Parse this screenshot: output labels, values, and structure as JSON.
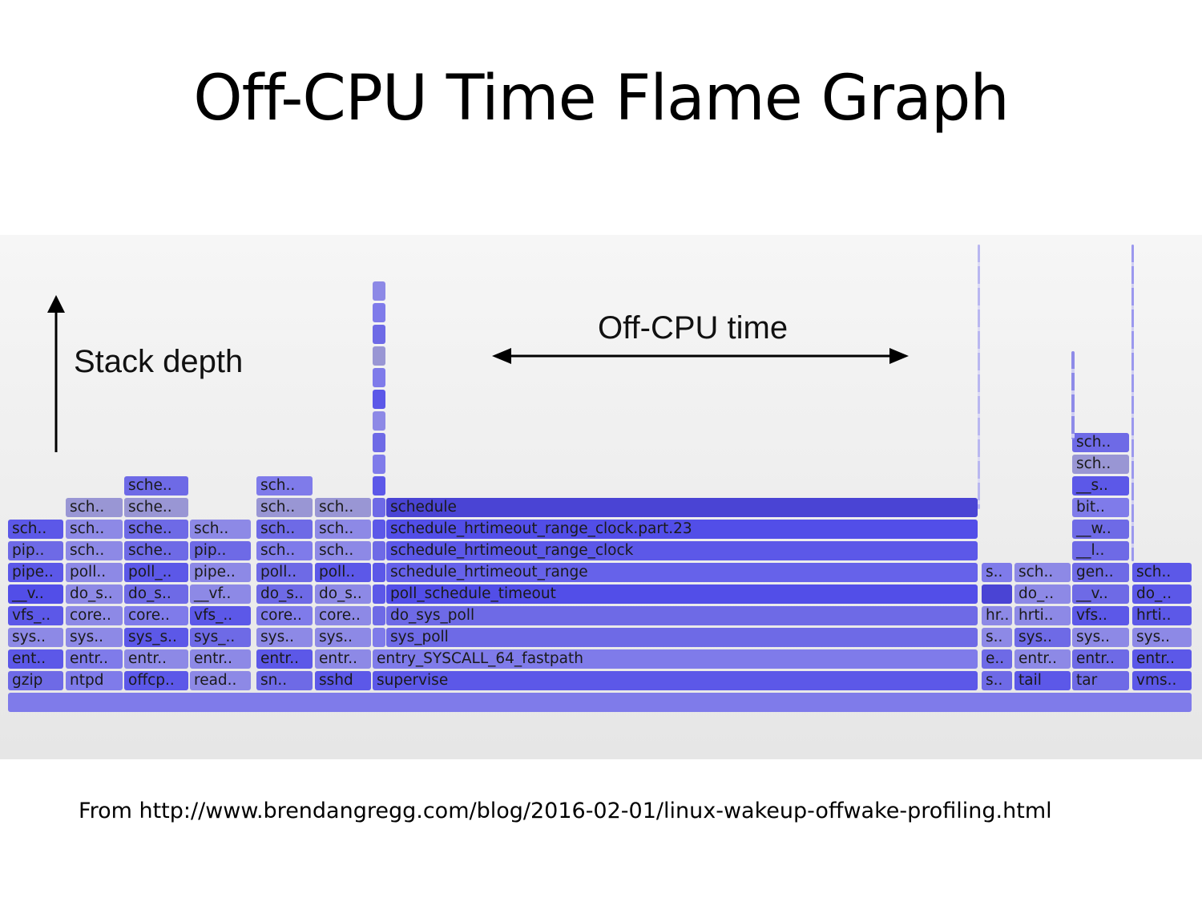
{
  "slide": {
    "title": "Off-CPU Time Flame Graph",
    "source": "From http://www.brendangregg.com/blog/2016-02-01/linux-wakeup-offwake-profiling.html"
  },
  "annotations": {
    "stack_depth": "Stack depth",
    "off_cpu_time": "Off-CPU time"
  },
  "colors": {
    "shades": [
      "#5c58e8",
      "#6e6ae6",
      "#7f7bea",
      "#8d89e6",
      "#9996d4",
      "#4a44d4",
      "#524ee8",
      "#6662ea"
    ]
  },
  "flame_graph": {
    "frames": [
      {
        "label": "",
        "shade": 2
      },
      {
        "label": "gzip",
        "shade": 1
      },
      {
        "label": "ntpd",
        "shade": 2
      },
      {
        "label": "offcp..",
        "shade": 0
      },
      {
        "label": "read..",
        "shade": 3
      },
      {
        "label": "sn..",
        "shade": 1
      },
      {
        "label": "sshd",
        "shade": 0
      },
      {
        "label": "supervise",
        "shade": 0
      },
      {
        "label": "s..",
        "shade": 1
      },
      {
        "label": "tail",
        "shade": 0
      },
      {
        "label": "tar",
        "shade": 1
      },
      {
        "label": "vms..",
        "shade": 0
      },
      {
        "label": "ent..",
        "shade": 0
      },
      {
        "label": "entr..",
        "shade": 2
      },
      {
        "label": "entr..",
        "shade": 3
      },
      {
        "label": "entr..",
        "shade": 3
      },
      {
        "label": "entr..",
        "shade": 0
      },
      {
        "label": "entr..",
        "shade": 3
      },
      {
        "label": "entry_SYSCALL_64_fastpath",
        "shade": 2
      },
      {
        "label": "e..",
        "shade": 1
      },
      {
        "label": "entr..",
        "shade": 3
      },
      {
        "label": "entr..",
        "shade": 1
      },
      {
        "label": "entr..",
        "shade": 0
      },
      {
        "label": "sys..",
        "shade": 3
      },
      {
        "label": "sys..",
        "shade": 3
      },
      {
        "label": "sys_s..",
        "shade": 0
      },
      {
        "label": "sys_..",
        "shade": 1
      },
      {
        "label": "sys..",
        "shade": 3
      },
      {
        "label": "sys..",
        "shade": 3
      },
      {
        "label": "",
        "shade": 2
      },
      {
        "label": "sys_poll",
        "shade": 1
      },
      {
        "label": "s..",
        "shade": 3
      },
      {
        "label": "sys..",
        "shade": 1
      },
      {
        "label": "sys..",
        "shade": 3
      },
      {
        "label": "sys..",
        "shade": 3
      },
      {
        "label": "vfs_..",
        "shade": 0
      },
      {
        "label": "core..",
        "shade": 3
      },
      {
        "label": "core..",
        "shade": 2
      },
      {
        "label": "vfs_..",
        "shade": 0
      },
      {
        "label": "core..",
        "shade": 2
      },
      {
        "label": "core..",
        "shade": 3
      },
      {
        "label": "",
        "shade": 1
      },
      {
        "label": "do_sys_poll",
        "shade": 1
      },
      {
        "label": "hr..",
        "shade": 3
      },
      {
        "label": "hrti..",
        "shade": 3
      },
      {
        "label": "vfs..",
        "shade": 0
      },
      {
        "label": "hrti..",
        "shade": 0
      },
      {
        "label": "__v..",
        "shade": 6
      },
      {
        "label": "do_s..",
        "shade": 3
      },
      {
        "label": "do_s..",
        "shade": 1
      },
      {
        "label": "__vf..",
        "shade": 3
      },
      {
        "label": "do_s..",
        "shade": 1
      },
      {
        "label": "do_s..",
        "shade": 3
      },
      {
        "label": "",
        "shade": 0
      },
      {
        "label": "poll_schedule_timeout",
        "shade": 6
      },
      {
        "label": "",
        "shade": 5
      },
      {
        "label": "do_..",
        "shade": 3
      },
      {
        "label": "__v..",
        "shade": 1
      },
      {
        "label": "do_..",
        "shade": 0
      },
      {
        "label": "pipe..",
        "shade": 0
      },
      {
        "label": "poll..",
        "shade": 3
      },
      {
        "label": "poll_..",
        "shade": 0
      },
      {
        "label": "pipe..",
        "shade": 3
      },
      {
        "label": "poll..",
        "shade": 1
      },
      {
        "label": "poll..",
        "shade": 0
      },
      {
        "label": "",
        "shade": 0
      },
      {
        "label": "schedule_hrtimeout_range",
        "shade": 7
      },
      {
        "label": "s..",
        "shade": 2
      },
      {
        "label": "sch..",
        "shade": 3
      },
      {
        "label": "gen..",
        "shade": 1
      },
      {
        "label": "sch..",
        "shade": 0
      },
      {
        "label": "pip..",
        "shade": 1
      },
      {
        "label": "sch..",
        "shade": 3
      },
      {
        "label": "sche..",
        "shade": 1
      },
      {
        "label": "pip..",
        "shade": 1
      },
      {
        "label": "sch..",
        "shade": 2
      },
      {
        "label": "sch..",
        "shade": 3
      },
      {
        "label": "",
        "shade": 1
      },
      {
        "label": "schedule_hrtimeout_range_clock",
        "shade": 0
      },
      {
        "label": "__l..",
        "shade": 1
      },
      {
        "label": "sch..",
        "shade": 0
      },
      {
        "label": "sch..",
        "shade": 3
      },
      {
        "label": "sche..",
        "shade": 1
      },
      {
        "label": "sch..",
        "shade": 3
      },
      {
        "label": "sch..",
        "shade": 1
      },
      {
        "label": "sch..",
        "shade": 3
      },
      {
        "label": "",
        "shade": 0
      },
      {
        "label": "schedule_hrtimeout_range_clock.part.23",
        "shade": 6
      },
      {
        "label": "__w..",
        "shade": 1
      },
      {
        "label": "sch..",
        "shade": 4
      },
      {
        "label": "sche..",
        "shade": 4
      },
      {
        "label": "sch..",
        "shade": 4
      },
      {
        "label": "sch..",
        "shade": 4
      },
      {
        "label": "",
        "shade": 1
      },
      {
        "label": "schedule",
        "shade": 5
      },
      {
        "label": "bit..",
        "shade": 2
      },
      {
        "label": "sche..",
        "shade": 1
      },
      {
        "label": "sch..",
        "shade": 2
      },
      {
        "label": "",
        "shade": 0
      },
      {
        "label": "__s..",
        "shade": 0
      },
      {
        "label": "",
        "shade": 2
      },
      {
        "label": "sch..",
        "shade": 4
      },
      {
        "label": "",
        "shade": 1
      },
      {
        "label": "sch..",
        "shade": 1
      },
      {
        "label": "",
        "shade": 3
      },
      {
        "label": "",
        "shade": 0
      },
      {
        "label": "",
        "shade": 2
      },
      {
        "label": "",
        "shade": 4
      },
      {
        "label": "",
        "shade": 1
      },
      {
        "label": "",
        "shade": 2
      },
      {
        "label": "",
        "shade": 3
      }
    ]
  }
}
